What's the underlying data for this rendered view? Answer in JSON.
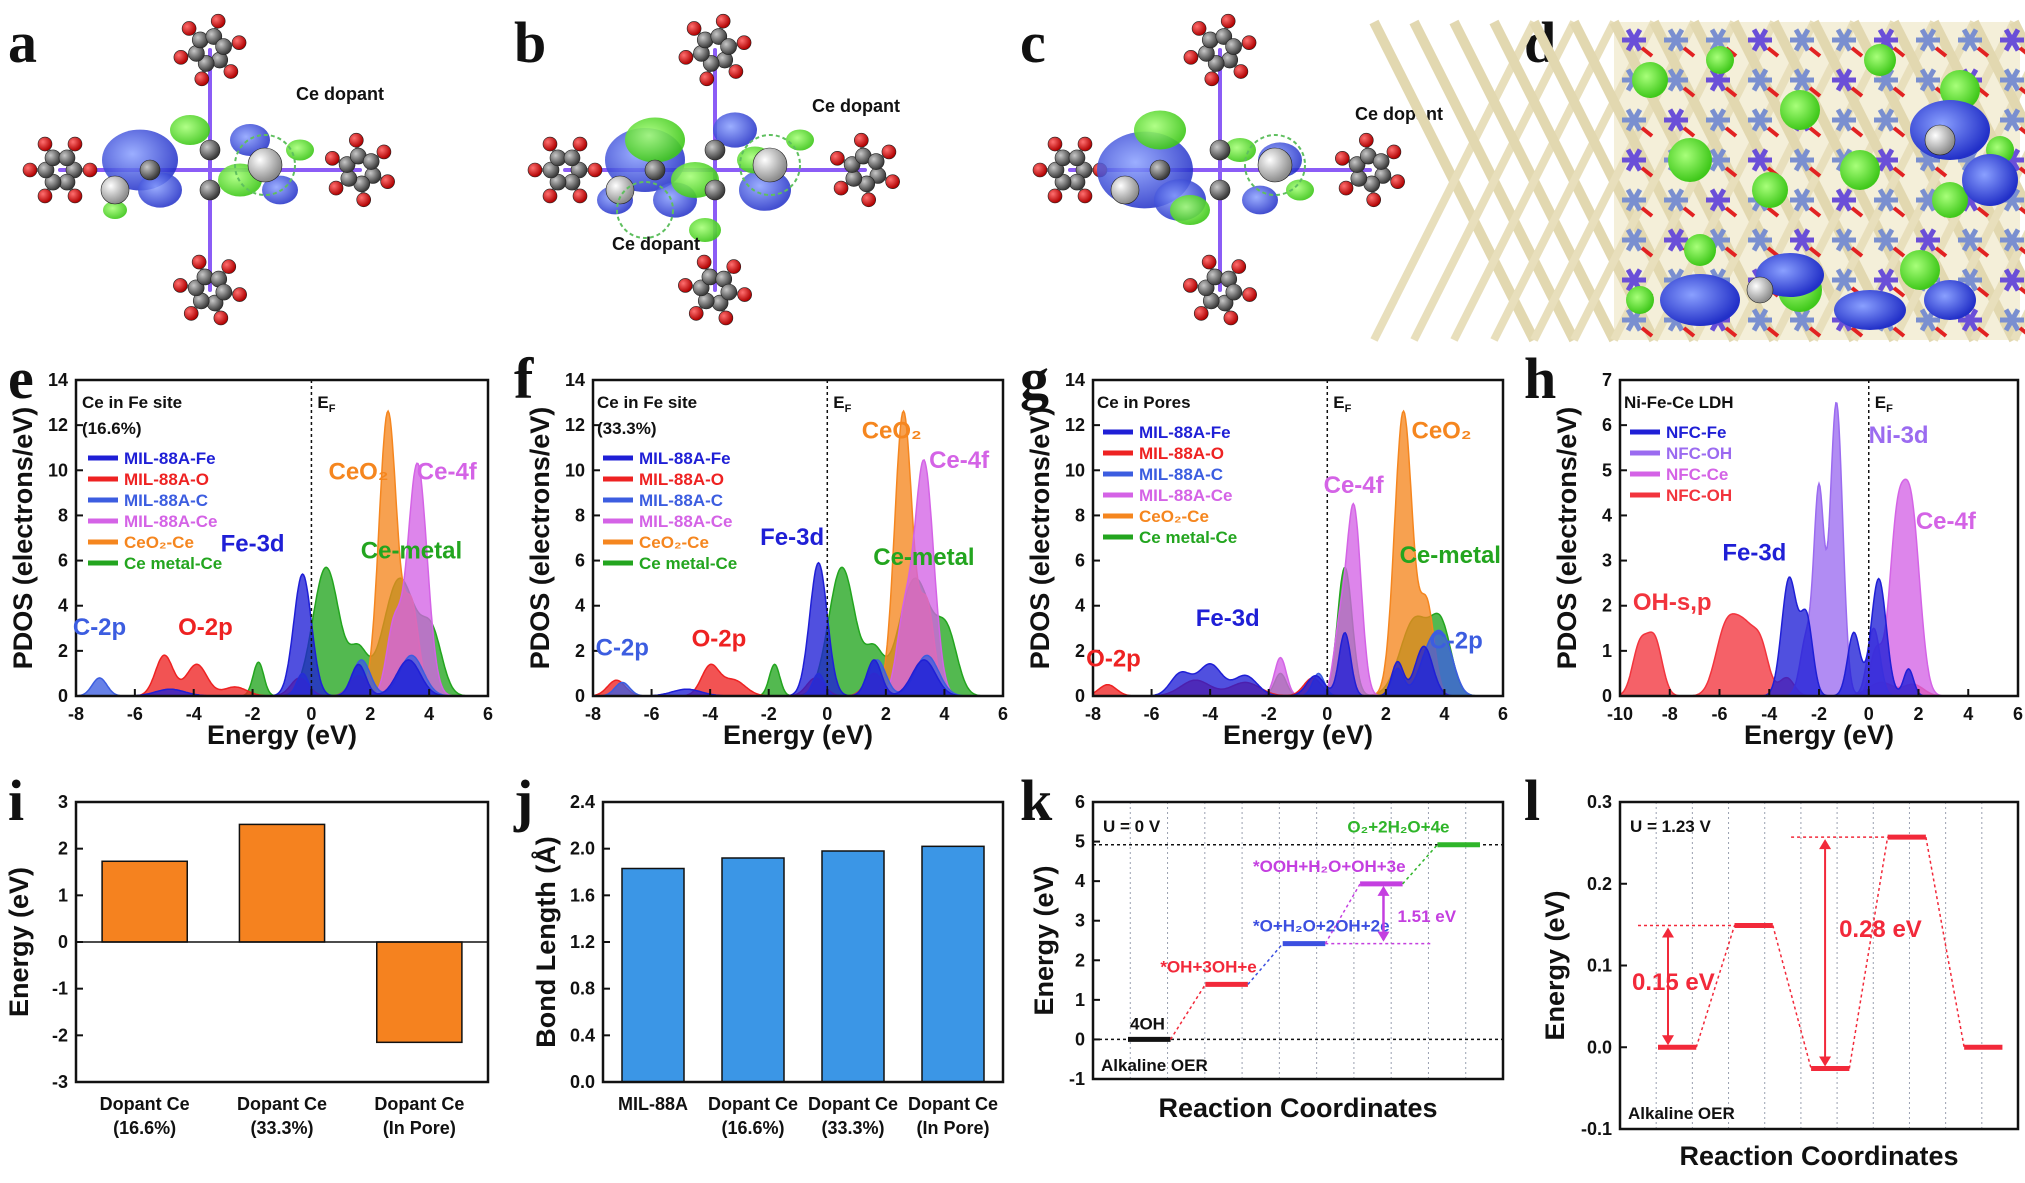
{
  "panel_letters": [
    "a",
    "b",
    "c",
    "d",
    "e",
    "f",
    "g",
    "h",
    "i",
    "j",
    "k",
    "l"
  ],
  "structure_panels": {
    "a": {
      "label": "Ce dopant"
    },
    "b": {
      "label_top": "Ce dopant",
      "label_bottom": "Ce dopant"
    },
    "c": {
      "label": "Ce dopant"
    },
    "d": {
      "description_only": true
    }
  },
  "colors": {
    "fe": "#1f1fd6",
    "o": "#ee2222",
    "c": "#3c5de0",
    "ce": "#d463e6",
    "ceo2": "#f5861f",
    "cemetal": "#23a51f",
    "lilac": "#9b6bf0",
    "ohred": "#f2343d",
    "bar_orange": "#f5821f",
    "bar_blue": "#3b96e6",
    "k_black": "#111111",
    "k_red": "#f2293a",
    "k_blue": "#3c4fe0",
    "k_magenta": "#c43fe0",
    "k_green": "#2fb52a"
  },
  "chart_data": [
    {
      "panel": "e",
      "type": "area",
      "title": "Ce in Fe site",
      "subtitle": "(16.6%)",
      "xlabel": "Energy (eV)",
      "ylabel": "PDOS (electrons/eV)",
      "xlim": [
        -8,
        6
      ],
      "ylim": [
        0,
        14
      ],
      "xticks": [
        "-8",
        "-6",
        "-4",
        "-2",
        "0",
        "2",
        "4",
        "6"
      ],
      "yticks": [
        "0",
        "2",
        "4",
        "6",
        "8",
        "10",
        "12",
        "14"
      ],
      "fermi_label": "E",
      "fermi_sub": "F",
      "legend": [
        "MIL-88A-Fe",
        "MIL-88A-O",
        "MIL-88A-C",
        "MIL-88A-Ce",
        "CeO₂-Ce",
        "Ce metal-Ce"
      ],
      "annotations": [
        {
          "text": "C-2p",
          "x": -7.2,
          "y": 2.7,
          "color": "c"
        },
        {
          "text": "O-2p",
          "x": -3.6,
          "y": 2.7,
          "color": "o"
        },
        {
          "text": "Fe-3d",
          "x": -2.0,
          "y": 6.4,
          "color": "fe"
        },
        {
          "text": "CeO₂",
          "x": 1.6,
          "y": 9.6,
          "color": "ceo2"
        },
        {
          "text": "Ce-4f",
          "x": 4.6,
          "y": 9.6,
          "color": "ce"
        },
        {
          "text": "Ce-metal",
          "x": 3.4,
          "y": 6.1,
          "color": "cemetal"
        }
      ],
      "series": [
        {
          "name": "Ce metal-Ce",
          "color": "cemetal",
          "peaks": [
            [
              -1.8,
              0.18,
              1.5
            ],
            [
              0.5,
              0.45,
              5.7
            ],
            [
              1.6,
              0.3,
              1.8
            ],
            [
              3.0,
              0.55,
              5.2
            ],
            [
              4.1,
              0.35,
              2.5
            ]
          ]
        },
        {
          "name": "CeO₂-Ce",
          "color": "ceo2",
          "peaks": [
            [
              2.6,
              0.3,
              12.6
            ],
            [
              3.4,
              0.25,
              4.0
            ]
          ]
        },
        {
          "name": "MIL-88A-Ce",
          "color": "ce",
          "peaks": [
            [
              3.6,
              0.33,
              10.3
            ],
            [
              2.8,
              0.25,
              3.0
            ]
          ]
        },
        {
          "name": "MIL-88A-O",
          "color": "o",
          "peaks": [
            [
              -5.0,
              0.3,
              1.8
            ],
            [
              -3.9,
              0.35,
              1.4
            ],
            [
              -2.6,
              0.4,
              0.4
            ],
            [
              -0.4,
              0.3,
              0.8
            ],
            [
              1.6,
              0.3,
              0.9
            ]
          ]
        },
        {
          "name": "MIL-88A-C",
          "color": "c",
          "peaks": [
            [
              -7.2,
              0.25,
              0.8
            ],
            [
              -0.3,
              0.2,
              1.0
            ],
            [
              1.7,
              0.3,
              1.6
            ],
            [
              3.4,
              0.4,
              1.8
            ]
          ]
        },
        {
          "name": "MIL-88A-Fe",
          "color": "fe",
          "peaks": [
            [
              -0.3,
              0.3,
              5.4
            ],
            [
              -4.8,
              0.5,
              0.3
            ],
            [
              1.6,
              0.25,
              1.4
            ],
            [
              3.3,
              0.4,
              1.6
            ]
          ]
        }
      ]
    },
    {
      "panel": "f",
      "type": "area",
      "title": "Ce in Fe site",
      "subtitle": "(33.3%)",
      "xlabel": "Energy (eV)",
      "ylabel": "PDOS (electrons/eV)",
      "xlim": [
        -8,
        6
      ],
      "ylim": [
        0,
        14
      ],
      "xticks": [
        "-8",
        "-6",
        "-4",
        "-2",
        "0",
        "2",
        "4",
        "6"
      ],
      "yticks": [
        "0",
        "2",
        "4",
        "6",
        "8",
        "10",
        "12",
        "14"
      ],
      "fermi_label": "E",
      "fermi_sub": "F",
      "legend": [
        "MIL-88A-Fe",
        "MIL-88A-O",
        "MIL-88A-C",
        "MIL-88A-Ce",
        "CeO₂-Ce",
        "Ce metal-Ce"
      ],
      "annotations": [
        {
          "text": "C-2p",
          "x": -7.0,
          "y": 1.8,
          "color": "c"
        },
        {
          "text": "O-2p",
          "x": -3.7,
          "y": 2.2,
          "color": "o"
        },
        {
          "text": "Fe-3d",
          "x": -1.2,
          "y": 6.7,
          "color": "fe"
        },
        {
          "text": "CeO₂",
          "x": 2.2,
          "y": 11.4,
          "color": "ceo2"
        },
        {
          "text": "Ce-4f",
          "x": 4.5,
          "y": 10.1,
          "color": "ce"
        },
        {
          "text": "Ce-metal",
          "x": 3.3,
          "y": 5.8,
          "color": "cemetal"
        }
      ],
      "series": [
        {
          "name": "Ce metal-Ce",
          "color": "cemetal",
          "peaks": [
            [
              -1.8,
              0.18,
              1.4
            ],
            [
              0.5,
              0.45,
              5.7
            ],
            [
              1.6,
              0.3,
              1.8
            ],
            [
              3.0,
              0.55,
              5.2
            ],
            [
              4.1,
              0.35,
              2.5
            ]
          ]
        },
        {
          "name": "CeO₂-Ce",
          "color": "ceo2",
          "peaks": [
            [
              2.6,
              0.3,
              12.6
            ],
            [
              3.4,
              0.25,
              4.0
            ]
          ]
        },
        {
          "name": "MIL-88A-Ce",
          "color": "ce",
          "peaks": [
            [
              3.3,
              0.33,
              10.4
            ],
            [
              2.6,
              0.25,
              3.0
            ]
          ]
        },
        {
          "name": "MIL-88A-O",
          "color": "o",
          "peaks": [
            [
              -7.2,
              0.3,
              0.7
            ],
            [
              -4.0,
              0.3,
              1.3
            ],
            [
              -3.2,
              0.4,
              0.7
            ],
            [
              -0.4,
              0.3,
              0.8
            ],
            [
              1.6,
              0.3,
              1.0
            ]
          ]
        },
        {
          "name": "MIL-88A-C",
          "color": "c",
          "peaks": [
            [
              -7.0,
              0.25,
              0.6
            ],
            [
              -0.3,
              0.2,
              1.0
            ],
            [
              1.7,
              0.3,
              1.6
            ],
            [
              3.4,
              0.4,
              1.8
            ]
          ]
        },
        {
          "name": "MIL-88A-Fe",
          "color": "fe",
          "peaks": [
            [
              -0.3,
              0.3,
              5.9
            ],
            [
              -4.8,
              0.5,
              0.3
            ],
            [
              1.6,
              0.25,
              1.6
            ],
            [
              3.3,
              0.4,
              1.6
            ]
          ]
        }
      ]
    },
    {
      "panel": "g",
      "type": "area",
      "title": "Ce in Pores",
      "xlabel": "Energy (eV)",
      "ylabel": "PDOS (electrons/eV)",
      "xlim": [
        -8,
        6
      ],
      "ylim": [
        0,
        14
      ],
      "xticks": [
        "-8",
        "-6",
        "-4",
        "-2",
        "0",
        "2",
        "4",
        "6"
      ],
      "yticks": [
        "0",
        "2",
        "4",
        "6",
        "8",
        "10",
        "12",
        "14"
      ],
      "fermi_label": "E",
      "fermi_sub": "F",
      "legend": [
        "MIL-88A-Fe",
        "MIL-88A-O",
        "MIL-88A-C",
        "MIL-88A-Ce",
        "CeO₂-Ce",
        "Ce metal-Ce"
      ],
      "annotations": [
        {
          "text": "O-2p",
          "x": -7.3,
          "y": 1.3,
          "color": "o"
        },
        {
          "text": "Fe-3d",
          "x": -3.4,
          "y": 3.1,
          "color": "fe"
        },
        {
          "text": "Ce-4f",
          "x": 0.9,
          "y": 9.0,
          "color": "ce"
        },
        {
          "text": "CeO₂",
          "x": 3.9,
          "y": 11.4,
          "color": "ceo2"
        },
        {
          "text": "Ce-metal",
          "x": 4.2,
          "y": 5.9,
          "color": "cemetal"
        },
        {
          "text": "C-2p",
          "x": 4.4,
          "y": 2.1,
          "color": "c"
        }
      ],
      "series": [
        {
          "name": "Ce metal-Ce",
          "color": "cemetal",
          "peaks": [
            [
              0.6,
              0.25,
              5.7
            ],
            [
              3.0,
              0.5,
              3.4
            ],
            [
              3.9,
              0.35,
              2.8
            ],
            [
              -1.6,
              0.2,
              1.0
            ]
          ]
        },
        {
          "name": "CeO₂-Ce",
          "color": "ceo2",
          "peaks": [
            [
              2.6,
              0.3,
              12.6
            ],
            [
              3.4,
              0.25,
              4.0
            ]
          ]
        },
        {
          "name": "MIL-88A-Ce",
          "color": "ce",
          "peaks": [
            [
              0.9,
              0.25,
              8.4
            ],
            [
              0.4,
              0.2,
              2.5
            ],
            [
              -1.6,
              0.2,
              1.7
            ]
          ]
        },
        {
          "name": "MIL-88A-O",
          "color": "o",
          "peaks": [
            [
              -7.5,
              0.3,
              0.5
            ],
            [
              -4.5,
              0.5,
              0.7
            ],
            [
              -2.8,
              0.5,
              0.6
            ],
            [
              -0.5,
              0.3,
              0.8
            ]
          ]
        },
        {
          "name": "MIL-88A-C",
          "color": "c",
          "peaks": [
            [
              -0.3,
              0.2,
              1.0
            ],
            [
              2.4,
              0.2,
              1.2
            ],
            [
              3.6,
              0.4,
              2.4
            ],
            [
              4.1,
              0.3,
              1.3
            ]
          ]
        },
        {
          "name": "MIL-88A-Fe",
          "color": "fe",
          "peaks": [
            [
              -5.0,
              0.35,
              1.0
            ],
            [
              -4.0,
              0.4,
              1.4
            ],
            [
              -2.8,
              0.4,
              0.9
            ],
            [
              -0.4,
              0.3,
              0.9
            ],
            [
              0.6,
              0.2,
              2.8
            ],
            [
              2.4,
              0.2,
              1.5
            ],
            [
              3.3,
              0.3,
              2.2
            ]
          ]
        }
      ]
    },
    {
      "panel": "h",
      "type": "area",
      "title": "Ni-Fe-Ce LDH",
      "xlabel": "Energy (eV)",
      "ylabel": "PDOS (electrons/eV)",
      "xlim": [
        -10,
        6
      ],
      "ylim": [
        0,
        7
      ],
      "xticks": [
        "-10",
        "-8",
        "-6",
        "-4",
        "-2",
        "0",
        "2",
        "4",
        "6"
      ],
      "yticks": [
        "0",
        "1",
        "2",
        "3",
        "4",
        "5",
        "6",
        "7"
      ],
      "fermi_label": "E",
      "fermi_sub": "F",
      "legend": [
        "NFC-Fe",
        "NFC-OH",
        "NFC-Ce",
        "NFC-OH"
      ],
      "annotations": [
        {
          "text": "OH-s,p",
          "x": -7.9,
          "y": 1.9,
          "color": "ohred"
        },
        {
          "text": "Fe-3d",
          "x": -4.6,
          "y": 3.0,
          "color": "fe"
        },
        {
          "text": "Ni-3d",
          "x": 1.2,
          "y": 5.6,
          "color": "lilac"
        },
        {
          "text": "Ce-4f",
          "x": 3.1,
          "y": 3.7,
          "color": "ce"
        }
      ],
      "series": [
        {
          "name": "NFC-OH (red)",
          "color": "ohred",
          "peaks": [
            [
              -9.2,
              0.3,
              1.1
            ],
            [
              -8.6,
              0.3,
              1.2
            ],
            [
              -5.8,
              0.4,
              1.2
            ],
            [
              -5.0,
              0.5,
              1.5
            ],
            [
              -4.3,
              0.3,
              0.7
            ],
            [
              -3.3,
              0.3,
              0.4
            ],
            [
              0.5,
              0.5,
              0.3
            ],
            [
              1.8,
              0.4,
              0.25
            ]
          ]
        },
        {
          "name": "NFC-Ce",
          "color": "ce",
          "peaks": [
            [
              1.1,
              0.3,
              3.2
            ],
            [
              1.7,
              0.35,
              4.1
            ],
            [
              0.3,
              0.25,
              1.0
            ]
          ]
        },
        {
          "name": "NFC-OH (lilac)",
          "color": "lilac",
          "peaks": [
            [
              -2.0,
              0.2,
              4.4
            ],
            [
              -1.3,
              0.25,
              6.5
            ],
            [
              -2.5,
              0.25,
              1.3
            ],
            [
              0.2,
              0.25,
              1.5
            ]
          ]
        },
        {
          "name": "NFC-Fe",
          "color": "fe",
          "peaks": [
            [
              -3.2,
              0.3,
              2.6
            ],
            [
              -2.5,
              0.25,
              1.7
            ],
            [
              -0.6,
              0.25,
              1.4
            ],
            [
              0.4,
              0.3,
              2.6
            ],
            [
              1.6,
              0.2,
              0.6
            ]
          ]
        }
      ]
    },
    {
      "panel": "i",
      "type": "bar",
      "xlabel": "",
      "ylabel": "Energy (eV)",
      "ylim": [
        -3,
        3
      ],
      "yticks": [
        "-3",
        "-2",
        "-1",
        "0",
        "1",
        "2",
        "3"
      ],
      "categories": [
        [
          "Dopant Ce",
          "(16.6%)"
        ],
        [
          "Dopant Ce",
          "(33.3%)"
        ],
        [
          "Dopant Ce",
          "(In Pore)"
        ]
      ],
      "values": [
        1.73,
        2.52,
        -2.15
      ]
    },
    {
      "panel": "j",
      "type": "bar",
      "xlabel": "",
      "ylabel": "Bond Length (Å)",
      "ylim": [
        0,
        2.4
      ],
      "yticks": [
        "0.0",
        "0.4",
        "0.8",
        "1.2",
        "1.6",
        "2.0",
        "2.4"
      ],
      "categories": [
        [
          "MIL-88A"
        ],
        [
          "Dopant Ce",
          "(16.6%)"
        ],
        [
          "Dopant Ce",
          "(33.3%)"
        ],
        [
          "Dopant Ce",
          "(In Pore)"
        ]
      ],
      "values": [
        1.83,
        1.92,
        1.98,
        2.02
      ]
    },
    {
      "panel": "k",
      "type": "line",
      "title": "U = 0 V",
      "footer": "Alkaline OER",
      "xlabel": "Reaction Coordinates",
      "ylabel": "Energy (eV)",
      "ylim": [
        -1,
        6
      ],
      "yticks": [
        "-1",
        "0",
        "1",
        "2",
        "3",
        "4",
        "5",
        "6"
      ],
      "steps": [
        {
          "label": "4OH",
          "value": 0.0,
          "color": "k_black"
        },
        {
          "label": "*OH+3OH+e",
          "value": 1.39,
          "color": "k_red"
        },
        {
          "label": "*O+H₂O+2OH+2e",
          "value": 2.42,
          "color": "k_blue"
        },
        {
          "label": "*OOH+H₂O+OH+3e",
          "value": 3.93,
          "color": "k_magenta"
        },
        {
          "label": "O₂+2H₂O+4e",
          "value": 4.92,
          "color": "k_green"
        }
      ],
      "dashed_line": 4.92,
      "gap_annotation": "1.51 eV"
    },
    {
      "panel": "l",
      "type": "line",
      "title": "U = 1.23 V",
      "footer": "Alkaline OER",
      "xlabel": "Reaction Coordinates",
      "ylabel": "Energy (eV)",
      "ylim": [
        -0.1,
        0.3
      ],
      "yticks": [
        "-0.1",
        "0.0",
        "0.1",
        "0.2",
        "0.3"
      ],
      "values": [
        0.0,
        0.149,
        -0.026,
        0.257,
        0.0
      ],
      "gap_annotations": [
        "0.15 eV",
        "0.28 eV"
      ]
    }
  ]
}
